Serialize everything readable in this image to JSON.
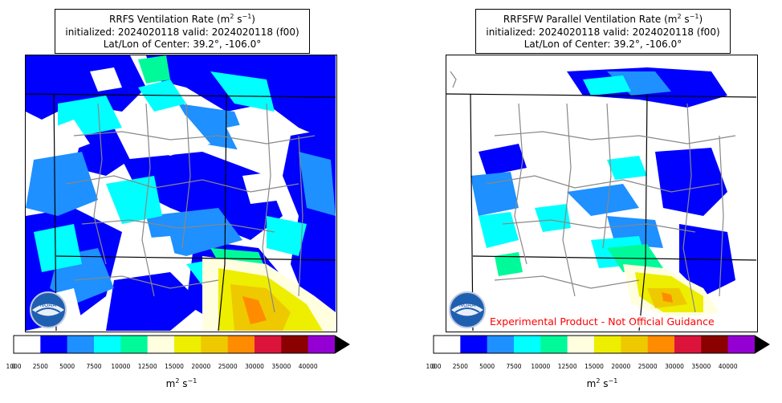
{
  "colors": [
    "#ffffff",
    "#0000ff",
    "#1e90ff",
    "#00ffff",
    "#00fa9a",
    "#ffffe0",
    "#eeee00",
    "#eec900",
    "#ff8c00",
    "#dc143c",
    "#8b0000",
    "#9400d3"
  ],
  "tick_labels": [
    "0",
    "1000",
    "2500",
    "5000",
    "7500",
    "10000",
    "12500",
    "15000",
    "20000",
    "25000",
    "30000",
    "35000",
    "40000"
  ],
  "panels": [
    {
      "title_pre": "RRFS Ventilation Rate (m",
      "title_sup1": "2",
      "title_mid": " s",
      "title_sup2": "−1",
      "title_post": ")",
      "line2": "initialized: 2024020118 valid: 2024020118 (f00)",
      "line3": "Lat/Lon of Center: 39.2°, -106.0°",
      "unit_base": "m",
      "unit_sup1": "2",
      "unit_mid": " s",
      "unit_sup2": "−1",
      "logo_text": "NOAA"
    },
    {
      "title_pre": "RRFSFW Parallel Ventilation Rate (m",
      "title_sup1": "2",
      "title_mid": " s",
      "title_sup2": "−1",
      "title_post": ")",
      "line2": "initialized: 2024020118 valid: 2024020118 (f00)",
      "line3": "Lat/Lon of Center: 39.2°, -106.0°",
      "unit_base": "m",
      "unit_sup1": "2",
      "unit_mid": " s",
      "unit_sup2": "−1",
      "logo_text": "NOAA",
      "disclaimer": "Experimental Product - Not Official Guidance"
    }
  ],
  "chart_data": [
    {
      "type": "heatmap",
      "title": "RRFS Ventilation Rate (m2 s−1)",
      "subtitle": "initialized: 2024020118 valid: 2024020118 (f00)",
      "center": [
        39.2,
        -106.0
      ],
      "colorbar_bounds": [
        0,
        1000,
        2500,
        5000,
        7500,
        10000,
        12500,
        15000,
        20000,
        25000,
        30000,
        35000,
        40000
      ],
      "colorbar_label": "m2 s−1"
    },
    {
      "type": "heatmap",
      "title": "RRFSFW Parallel Ventilation Rate (m2 s−1)",
      "subtitle": "initialized: 2024020118 valid: 2024020118 (f00)",
      "center": [
        39.2,
        -106.0
      ],
      "colorbar_bounds": [
        0,
        1000,
        2500,
        5000,
        7500,
        10000,
        12500,
        15000,
        20000,
        25000,
        30000,
        35000,
        40000
      ],
      "colorbar_label": "m2 s−1"
    }
  ]
}
